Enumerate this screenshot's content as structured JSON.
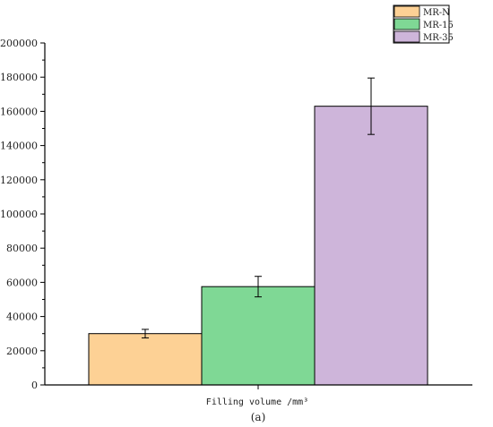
{
  "chart_data": {
    "type": "bar",
    "xlabel": "Filling volume /mm³",
    "caption": "(a)",
    "ylim": [
      0,
      200000
    ],
    "yticks": [
      0,
      20000,
      40000,
      60000,
      80000,
      100000,
      120000,
      140000,
      160000,
      180000,
      200000
    ],
    "legend_position": "top-right",
    "grid": false,
    "series": [
      {
        "name": "MR-N",
        "value": 30000,
        "error": 2500,
        "color": "#FDD195"
      },
      {
        "name": "MR-15",
        "value": 57500,
        "error": 6000,
        "color": "#7FD895"
      },
      {
        "name": "MR-35",
        "value": 163000,
        "error": 16500,
        "color": "#CEB5DA"
      }
    ]
  }
}
